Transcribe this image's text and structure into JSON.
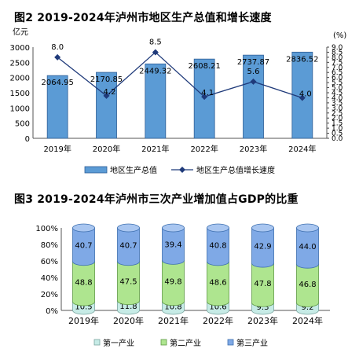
{
  "chart_data": [
    {
      "type": "bar",
      "title": "图2 2019-2024年泸州市地区生产总值和增长速度",
      "y_unit_left": "亿元",
      "y_unit_right": "(%)",
      "categories": [
        "2019年",
        "2020年",
        "2021年",
        "2022年",
        "2023年",
        "2024年"
      ],
      "ylim": [
        0,
        3000
      ],
      "y_ticks": [
        0,
        500,
        1000,
        1500,
        2000,
        2500,
        3000
      ],
      "y2lim": [
        0.0,
        9.0
      ],
      "y2_ticks": [
        "0.0",
        "0.5",
        "1.0",
        "1.5",
        "2.0",
        "2.5",
        "3.0",
        "3.5",
        "4.0",
        "4.5",
        "5.0",
        "5.5",
        "6.0",
        "6.5",
        "7.0",
        "7.5",
        "8.0",
        "8.5",
        "9.0"
      ],
      "series": [
        {
          "name": "地区生产总值",
          "type": "bar",
          "axis": "left",
          "color": "#5b9bd5",
          "values": [
            2064.95,
            2170.85,
            2449.32,
            2608.21,
            2737.87,
            2836.52
          ],
          "labels": [
            "2064.95",
            "2170.85",
            "2449.32",
            "2608.21",
            "2737.87",
            "2836.52"
          ]
        },
        {
          "name": "地区生产总值增长速度",
          "type": "line",
          "axis": "right",
          "color": "#1f3a7a",
          "values": [
            8.0,
            4.2,
            8.5,
            4.1,
            5.6,
            4.0
          ],
          "labels": [
            "8.0",
            "4.2",
            "8.5",
            "4.1",
            "5.6",
            "4.0"
          ]
        }
      ],
      "legend_position": "bottom"
    },
    {
      "type": "bar",
      "stacked": true,
      "percent": true,
      "title": "图3 2019-2024年泸州市三次产业增加值占GDP的比重",
      "categories": [
        "2019年",
        "2020年",
        "2021年",
        "2022年",
        "2023年",
        "2024年"
      ],
      "ylim": [
        0,
        100
      ],
      "y_ticks": [
        "0%",
        "20%",
        "40%",
        "60%",
        "80%",
        "100%"
      ],
      "series": [
        {
          "name": "第一产业",
          "color": "#c6ebe6",
          "values": [
            10.5,
            11.8,
            10.8,
            10.6,
            9.3,
            9.2
          ],
          "labels": [
            "10.5",
            "11.8",
            "10.8",
            "10.6",
            "9.3",
            "9.2"
          ]
        },
        {
          "name": "第二产业",
          "color": "#aee58f",
          "values": [
            48.8,
            47.5,
            49.8,
            48.6,
            47.8,
            46.8
          ],
          "labels": [
            "48.8",
            "47.5",
            "49.8",
            "48.6",
            "47.8",
            "46.8"
          ]
        },
        {
          "name": "第三产业",
          "color": "#7fa9e6",
          "values": [
            40.7,
            40.7,
            39.4,
            40.8,
            42.9,
            44.0
          ],
          "labels": [
            "40.7",
            "40.7",
            "39.4",
            "40.8",
            "42.9",
            "44.0"
          ]
        }
      ],
      "legend_position": "bottom"
    }
  ]
}
